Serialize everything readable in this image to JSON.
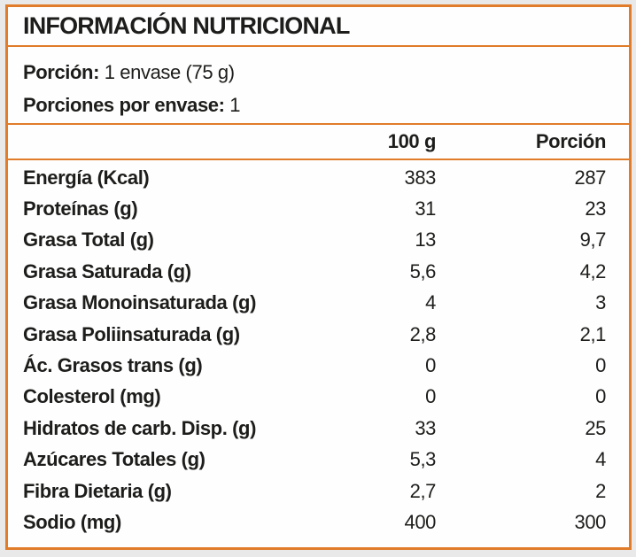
{
  "label": {
    "title": "INFORMACIÓN NUTRICIONAL",
    "serving": {
      "label": "Porción:",
      "value": "1 envase (75 g)"
    },
    "servings_per_container": {
      "label": "Porciones por envase:",
      "value": "1"
    },
    "columns": {
      "per100": "100 g",
      "portion": "Porción"
    },
    "rows": [
      {
        "name": "Energía (Kcal)",
        "per100": "383",
        "portion": "287"
      },
      {
        "name": "Proteínas (g)",
        "per100": "31",
        "portion": "23"
      },
      {
        "name": "Grasa Total (g)",
        "per100": "13",
        "portion": "9,7"
      },
      {
        "name": "Grasa Saturada (g)",
        "per100": "5,6",
        "portion": "4,2"
      },
      {
        "name": "Grasa Monoinsaturada (g)",
        "per100": "4",
        "portion": "3"
      },
      {
        "name": "Grasa Poliinsaturada (g)",
        "per100": "2,8",
        "portion": "2,1"
      },
      {
        "name": "Ác. Grasos trans (g)",
        "per100": "0",
        "portion": "0"
      },
      {
        "name": "Colesterol (mg)",
        "per100": "0",
        "portion": "0"
      },
      {
        "name": "Hidratos de carb. Disp. (g)",
        "per100": "33",
        "portion": "25"
      },
      {
        "name": "Azúcares Totales (g)",
        "per100": "5,3",
        "portion": "4"
      },
      {
        "name": "Fibra Dietaria (g)",
        "per100": "2,7",
        "portion": "2"
      },
      {
        "name": "Sodio (mg)",
        "per100": "400",
        "portion": "300"
      }
    ],
    "colors": {
      "accent": "#e07c2a",
      "text": "#1d1d1b",
      "background_outer": "#e9e9e9",
      "background_inner": "#fefefe"
    }
  }
}
